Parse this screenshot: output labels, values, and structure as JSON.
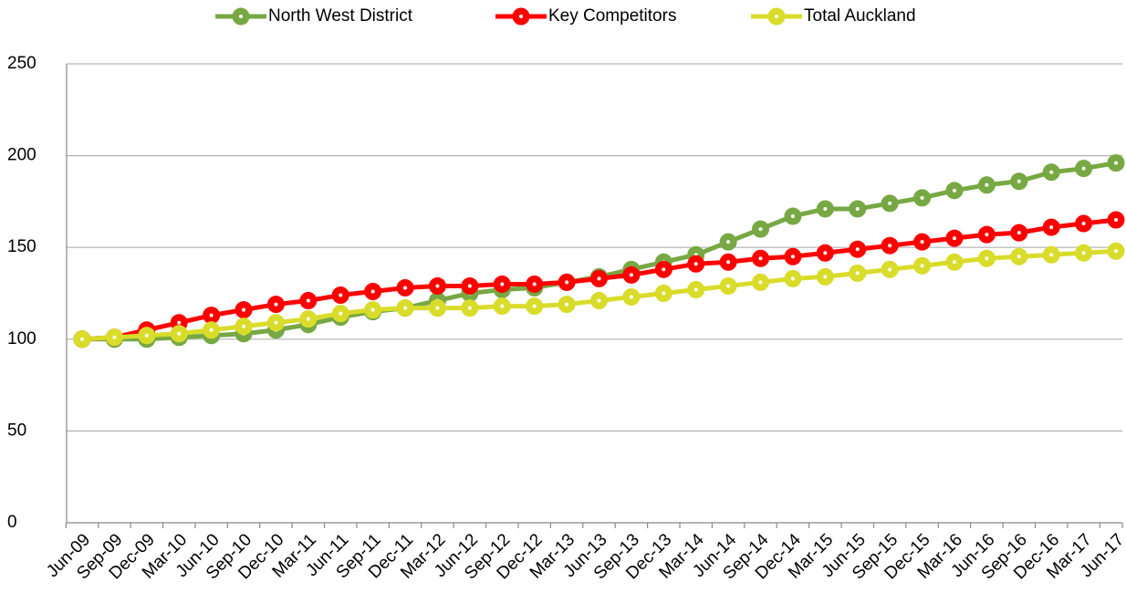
{
  "chart_data": {
    "type": "line",
    "categories": [
      "Jun-09",
      "Sep-09",
      "Dec-09",
      "Mar-10",
      "Jun-10",
      "Sep-10",
      "Dec-10",
      "Mar-11",
      "Jun-11",
      "Sep-11",
      "Dec-11",
      "Mar-12",
      "Jun-12",
      "Sep-12",
      "Dec-12",
      "Mar-13",
      "Jun-13",
      "Sep-13",
      "Dec-13",
      "Mar-14",
      "Jun-14",
      "Sep-14",
      "Dec-14",
      "Mar-15",
      "Jun-15",
      "Sep-15",
      "Dec-15",
      "Mar-16",
      "Jun-16",
      "Sep-16",
      "Dec-16",
      "Mar-17",
      "Jun-17"
    ],
    "series": [
      {
        "name": "North West District",
        "color": "#77a843",
        "values": [
          100,
          100,
          100,
          101,
          102,
          103,
          105,
          108,
          112,
          115,
          117,
          121,
          125,
          127,
          128,
          131,
          134,
          138,
          142,
          146,
          153,
          160,
          167,
          171,
          171,
          174,
          177,
          181,
          184,
          186,
          191,
          193,
          196
        ]
      },
      {
        "name": "Key Competitors",
        "color": "#ff0000",
        "values": [
          100,
          101,
          105,
          109,
          113,
          116,
          119,
          121,
          124,
          126,
          128,
          129,
          129,
          130,
          130,
          131,
          133,
          135,
          138,
          141,
          142,
          144,
          145,
          147,
          149,
          151,
          153,
          155,
          157,
          158,
          161,
          163,
          165
        ]
      },
      {
        "name": "Total Auckland",
        "color": "#d9dc2a",
        "values": [
          100,
          101,
          102,
          103,
          105,
          107,
          109,
          111,
          114,
          116,
          117,
          117,
          117,
          118,
          118,
          119,
          121,
          123,
          125,
          127,
          129,
          131,
          133,
          134,
          136,
          138,
          140,
          142,
          144,
          145,
          146,
          147,
          148
        ]
      }
    ],
    "ylim": [
      0,
      250
    ],
    "yticks": [
      0,
      50,
      100,
      150,
      200,
      250
    ],
    "grid": true,
    "legend": "top"
  }
}
